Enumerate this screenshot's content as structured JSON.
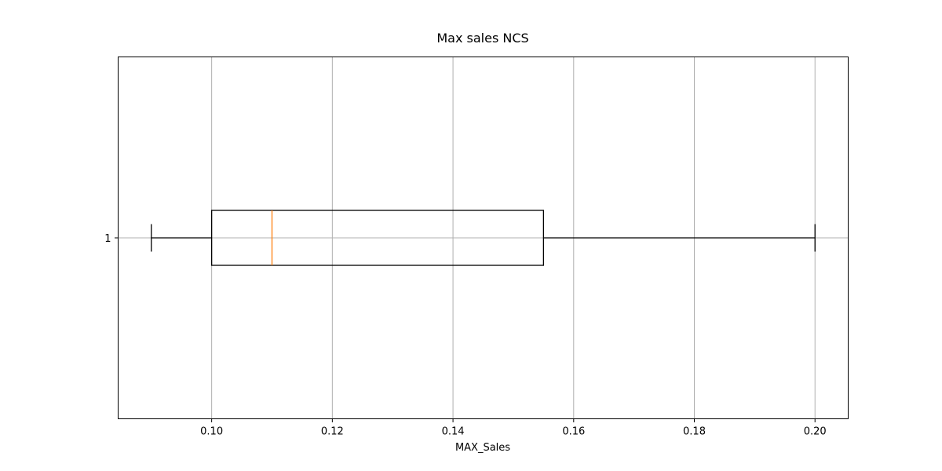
{
  "chart_data": {
    "type": "boxplot",
    "orientation": "horizontal",
    "title": "Max sales NCS",
    "xlabel": "MAX_Sales",
    "ylabel": "",
    "xlim": [
      0.0845,
      0.2055
    ],
    "grid": true,
    "x_ticks": [
      0.1,
      0.12,
      0.14,
      0.16,
      0.18,
      0.2
    ],
    "x_tick_labels": [
      "0.10",
      "0.12",
      "0.14",
      "0.16",
      "0.18",
      "0.20"
    ],
    "categories": [
      "1"
    ],
    "boxes": [
      {
        "category": "1",
        "whisker_low": 0.09,
        "q1": 0.1,
        "median": 0.11,
        "q3": 0.155,
        "whisker_high": 0.2
      }
    ],
    "colors": {
      "box": "#000000",
      "median": "#ff7f0e",
      "grid": "#b0b0b0"
    }
  }
}
